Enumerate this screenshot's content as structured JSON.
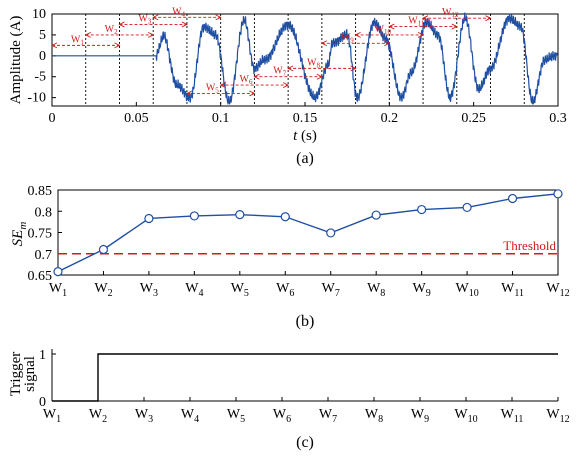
{
  "colors": {
    "signal": "#1f4fa3",
    "accent": "#d21a1a",
    "axis": "#000000",
    "trigger": "#000000"
  },
  "chart_data": [
    {
      "type": "line",
      "caption": "(a)",
      "ylabel": "Amplitude (A)",
      "xlabel_var": "t",
      "xlabel_unit": " (s)",
      "xlim": [
        0,
        0.3
      ],
      "ylim": [
        -12,
        10
      ],
      "x_ticks": [
        0,
        0.05,
        0.1,
        0.15,
        0.2,
        0.25,
        0.3
      ],
      "x_tick_labels": [
        "0",
        "0.05",
        "0.1",
        "0.15",
        "0.2",
        "0.25",
        "0.3"
      ],
      "y_ticks": [
        -10,
        -5,
        0,
        5,
        10
      ],
      "y_tick_labels": [
        "-10",
        "-5",
        "0",
        "5",
        "10"
      ],
      "signal": {
        "flat_until": 0.062,
        "fundamental_hz": 50,
        "pulse_peaks": [
          {
            "t": 0.066,
            "v": 5.0
          },
          {
            "t": 0.074,
            "v": -7.0
          },
          {
            "t": 0.082,
            "v": -10.0
          },
          {
            "t": 0.09,
            "v": 7.0
          },
          {
            "t": 0.097,
            "v": 5.0
          },
          {
            "t": 0.105,
            "v": -11.0
          },
          {
            "t": 0.114,
            "v": 8.5
          },
          {
            "t": 0.12,
            "v": -3.0
          },
          {
            "t": 0.126,
            "v": -1.0
          },
          {
            "t": 0.14,
            "v": 7.5
          },
          {
            "t": 0.156,
            "v": -10.0
          },
          {
            "t": 0.164,
            "v": -2.0
          },
          {
            "t": 0.166,
            "v": 3.0
          },
          {
            "t": 0.175,
            "v": 5.0
          },
          {
            "t": 0.181,
            "v": -10.0
          },
          {
            "t": 0.191,
            "v": 8.0
          },
          {
            "t": 0.198,
            "v": 4.0
          },
          {
            "t": 0.207,
            "v": -10.0
          },
          {
            "t": 0.213,
            "v": -4.0
          },
          {
            "t": 0.222,
            "v": 8.0
          },
          {
            "t": 0.229,
            "v": 5.0
          },
          {
            "t": 0.236,
            "v": -10.0
          },
          {
            "t": 0.245,
            "v": 9.0
          },
          {
            "t": 0.253,
            "v": -8.0
          },
          {
            "t": 0.26,
            "v": -3.0
          },
          {
            "t": 0.271,
            "v": 9.0
          },
          {
            "t": 0.278,
            "v": 7.0
          },
          {
            "t": 0.285,
            "v": -11.0
          },
          {
            "t": 0.292,
            "v": -1.0
          },
          {
            "t": 0.298,
            "v": 0.0
          }
        ]
      },
      "window_boundaries": [
        0.02,
        0.04,
        0.06,
        0.08,
        0.1,
        0.12,
        0.14,
        0.16,
        0.18,
        0.2,
        0.22,
        0.24,
        0.26,
        0.28
      ],
      "windows": [
        {
          "label": "W",
          "sub": "1",
          "start": 0.0,
          "end": 0.04,
          "level": 2.5
        },
        {
          "label": "W",
          "sub": "2",
          "start": 0.02,
          "end": 0.06,
          "level": 5.0
        },
        {
          "label": "W",
          "sub": "3",
          "start": 0.04,
          "end": 0.08,
          "level": 7.5
        },
        {
          "label": "W",
          "sub": "4",
          "start": 0.06,
          "end": 0.1,
          "level": 9.2
        },
        {
          "label": "W",
          "sub": "5",
          "start": 0.08,
          "end": 0.12,
          "level": -9.0
        },
        {
          "label": "W",
          "sub": "6",
          "start": 0.1,
          "end": 0.14,
          "level": -7.0
        },
        {
          "label": "W",
          "sub": "7",
          "start": 0.12,
          "end": 0.16,
          "level": -5.0
        },
        {
          "label": "W",
          "sub": "8",
          "start": 0.14,
          "end": 0.18,
          "level": -3.0
        },
        {
          "label": "W",
          "sub": "9",
          "start": 0.16,
          "end": 0.2,
          "level": 3.0
        },
        {
          "label": "W",
          "sub": "10",
          "start": 0.18,
          "end": 0.22,
          "level": 5.0
        },
        {
          "label": "W",
          "sub": "11",
          "start": 0.2,
          "end": 0.24,
          "level": 7.0
        },
        {
          "label": "W",
          "sub": "12",
          "start": 0.22,
          "end": 0.26,
          "level": 9.0
        }
      ]
    },
    {
      "type": "line",
      "caption": "(b)",
      "ylabel_main": "SE",
      "ylabel_sub": "m",
      "categories": [
        "W1",
        "W2",
        "W3",
        "W4",
        "W5",
        "W6",
        "W7",
        "W8",
        "W9",
        "W10",
        "W11",
        "W12"
      ],
      "category_labels": [
        {
          "main": "W",
          "sub": "1"
        },
        {
          "main": "W",
          "sub": "2"
        },
        {
          "main": "W",
          "sub": "3"
        },
        {
          "main": "W",
          "sub": "4"
        },
        {
          "main": "W",
          "sub": "5"
        },
        {
          "main": "W",
          "sub": "6"
        },
        {
          "main": "W",
          "sub": "7"
        },
        {
          "main": "W",
          "sub": "8"
        },
        {
          "main": "W",
          "sub": "9"
        },
        {
          "main": "W",
          "sub": "10"
        },
        {
          "main": "W",
          "sub": "11"
        },
        {
          "main": "W",
          "sub": "12"
        }
      ],
      "values": [
        0.658,
        0.71,
        0.783,
        0.789,
        0.792,
        0.787,
        0.749,
        0.791,
        0.804,
        0.809,
        0.83,
        0.841
      ],
      "ylim": [
        0.65,
        0.85
      ],
      "y_ticks": [
        0.65,
        0.7,
        0.75,
        0.8,
        0.85
      ],
      "y_tick_labels": [
        "0.65",
        "0.7",
        "0.75",
        "0.8",
        "0.85"
      ],
      "threshold": 0.7,
      "threshold_label": "Threshold"
    },
    {
      "type": "line",
      "caption": "(c)",
      "ylabel_lines": [
        "Trigger",
        "signal"
      ],
      "categories": [
        "W1",
        "W2",
        "W3",
        "W4",
        "W5",
        "W6",
        "W7",
        "W8",
        "W9",
        "W10",
        "W11",
        "W12"
      ],
      "category_labels": [
        {
          "main": "W",
          "sub": "1"
        },
        {
          "main": "W",
          "sub": "2"
        },
        {
          "main": "W",
          "sub": "3"
        },
        {
          "main": "W",
          "sub": "4"
        },
        {
          "main": "W",
          "sub": "5"
        },
        {
          "main": "W",
          "sub": "6"
        },
        {
          "main": "W",
          "sub": "7"
        },
        {
          "main": "W",
          "sub": "8"
        },
        {
          "main": "W",
          "sub": "9"
        },
        {
          "main": "W",
          "sub": "10"
        },
        {
          "main": "W",
          "sub": "11"
        },
        {
          "main": "W",
          "sub": "12"
        }
      ],
      "values": [
        0,
        1,
        1,
        1,
        1,
        1,
        1,
        1,
        1,
        1,
        1,
        1
      ],
      "ylim": [
        0,
        1
      ],
      "y_ticks": [
        0,
        1
      ],
      "y_tick_labels": [
        "0",
        "1"
      ]
    }
  ]
}
